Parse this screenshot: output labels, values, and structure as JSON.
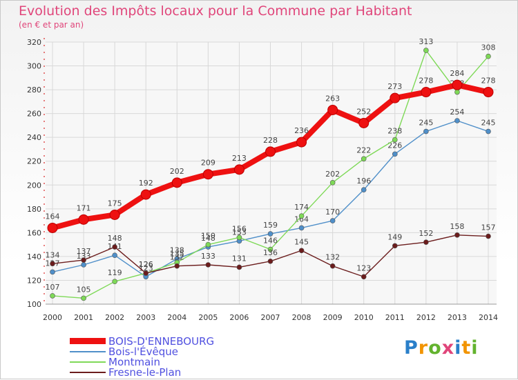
{
  "title": "Evolution des Impôts locaux pour la Commune par Habitant",
  "subtitle": "(en € et par an)",
  "logo_text": "Proxiti",
  "chart_data": {
    "type": "line",
    "title": "Evolution des Impôts locaux pour la Commune par Habitant",
    "subtitle": "(en € et par an)",
    "x": [
      2000,
      2001,
      2002,
      2003,
      2004,
      2005,
      2006,
      2007,
      2008,
      2009,
      2010,
      2011,
      2012,
      2013,
      2014
    ],
    "ylim": [
      100,
      320
    ],
    "yticks": [
      100,
      120,
      140,
      160,
      180,
      200,
      220,
      240,
      260,
      280,
      300,
      320
    ],
    "grid": true,
    "legend_position": "bottom-left",
    "series": [
      {
        "name": "Bois-l'Évêque",
        "color": "#4f8fc9",
        "values": [
          127,
          133,
          141,
          123,
          138,
          148,
          153,
          159,
          164,
          170,
          196,
          226,
          245,
          254,
          245
        ]
      },
      {
        "name": "Montmain",
        "color": "#7ed957",
        "values": [
          107,
          105,
          119,
          126,
          135,
          150,
          156,
          146,
          174,
          202,
          222,
          238,
          313,
          278,
          308
        ]
      },
      {
        "name": "Fresne-le-Plan",
        "color": "#6b1c1c",
        "values": [
          134,
          137,
          148,
          126,
          132,
          133,
          131,
          136,
          145,
          132,
          123,
          149,
          152,
          158,
          157
        ]
      },
      {
        "name": "BOIS-D'ENNEBOURG",
        "color": "#ee1111",
        "values": [
          164,
          171,
          175,
          192,
          202,
          209,
          213,
          228,
          236,
          263,
          252,
          273,
          278,
          284,
          278
        ]
      }
    ],
    "legend": [
      "BOIS-D'ENNEBOURG",
      "Bois-l'Évêque",
      "Montmain",
      "Fresne-le-Plan"
    ]
  }
}
